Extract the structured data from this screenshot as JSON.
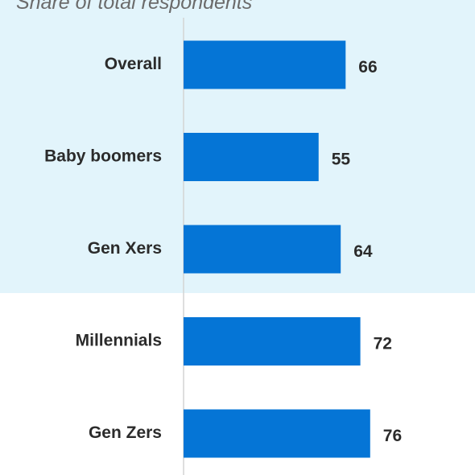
{
  "subtitle": "Share of total respondents",
  "colors": {
    "bar": "#0575d6",
    "highlight_band": "#e2f4fb",
    "axis": "#d3d3d3"
  },
  "chart_data": {
    "type": "bar",
    "orientation": "horizontal",
    "categories": [
      "Overall",
      "Baby boomers",
      "Gen Xers",
      "Millennials",
      "Gen Zers"
    ],
    "values": [
      66,
      55,
      64,
      72,
      76
    ],
    "subtitle": "Share of total respondents",
    "grid": false,
    "data_labels": true
  }
}
